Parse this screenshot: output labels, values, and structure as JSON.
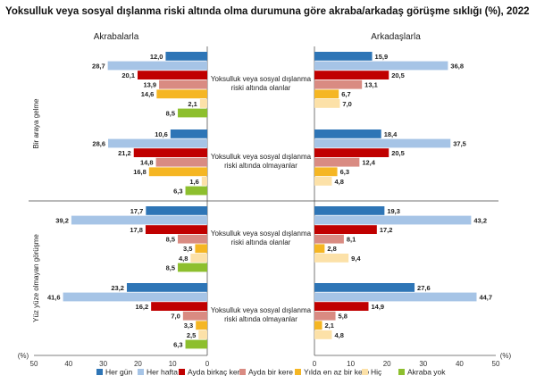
{
  "chart_data": {
    "type": "bar",
    "title": "Yoksulluk veya sosyal dışlanma riski altında olma durumuna göre akraba/arkadaş görüşme sıklığı (%), 2022",
    "left_header": "Akrabalarla",
    "right_header": "Arkadaşlarla",
    "axis_unit": "(%)",
    "xlim": [
      0,
      50
    ],
    "ticks": [
      50,
      40,
      30,
      20,
      10,
      0,
      10,
      20,
      30,
      40,
      50
    ],
    "row_groups": [
      "Bir araya gelme",
      "Yüz yüze olmayan görüşme"
    ],
    "series": [
      {
        "name": "Her gün",
        "color": "#2e75b6"
      },
      {
        "name": "Her hafta",
        "color": "#a6c4e6"
      },
      {
        "name": "Ayda birkaç kere",
        "color": "#c00000"
      },
      {
        "name": "Ayda bir kere",
        "color": "#d98b82"
      },
      {
        "name": "Yılda en az bir kere",
        "color": "#f5b623"
      },
      {
        "name": "Hiç",
        "color": "#fce1a8"
      },
      {
        "name": "Akraba yok",
        "color": "#8dbf2e"
      }
    ],
    "panels": [
      {
        "group": 0,
        "category": [
          "Yoksulluk veya sosyal dışlanma",
          "riski altında olanlar"
        ],
        "left": [
          12.0,
          28.7,
          20.1,
          13.9,
          14.6,
          2.1,
          8.5
        ],
        "left_labels": [
          "12,0",
          "28,7",
          "20,1",
          "13,9",
          "14,6",
          "2,1",
          "8,5"
        ],
        "right": [
          15.9,
          36.8,
          20.5,
          13.1,
          6.7,
          7.0
        ],
        "right_labels": [
          "15,9",
          "36,8",
          "20,5",
          "13,1",
          "6,7",
          "7,0"
        ]
      },
      {
        "group": 0,
        "category": [
          "Yoksulluk veya sosyal dışlanma",
          "riski altında olmayanlar"
        ],
        "left": [
          10.6,
          28.6,
          21.2,
          14.8,
          16.8,
          1.6,
          6.3
        ],
        "left_labels": [
          "10,6",
          "28,6",
          "21,2",
          "14,8",
          "16,8",
          "1,6",
          "6,3"
        ],
        "right": [
          18.4,
          37.5,
          20.5,
          12.4,
          6.3,
          4.8
        ],
        "right_labels": [
          "18,4",
          "37,5",
          "20,5",
          "12,4",
          "6,3",
          "4,8"
        ]
      },
      {
        "group": 1,
        "category": [
          "Yoksulluk veya sosyal dışlanma",
          "riski altında olanlar"
        ],
        "left": [
          17.7,
          39.2,
          17.8,
          8.5,
          3.5,
          4.8,
          8.5
        ],
        "left_labels": [
          "17,7",
          "39,2",
          "17,8",
          "8,5",
          "3,5",
          "4,8",
          "8,5"
        ],
        "right": [
          19.3,
          43.2,
          17.2,
          8.1,
          2.8,
          9.4
        ],
        "right_labels": [
          "19,3",
          "43,2",
          "17,2",
          "8,1",
          "2,8",
          "9,4"
        ]
      },
      {
        "group": 1,
        "category": [
          "Yoksulluk veya sosyal dışlanma",
          "riski altında olmayanlar"
        ],
        "left": [
          23.2,
          41.6,
          16.2,
          7.0,
          3.3,
          2.5,
          6.3
        ],
        "left_labels": [
          "23,2",
          "41,6",
          "16,2",
          "7,0",
          "3,3",
          "2,5",
          "6,3"
        ],
        "right": [
          27.6,
          44.7,
          14.9,
          5.8,
          2.1,
          4.8
        ],
        "right_labels": [
          "27,6",
          "44,7",
          "14,9",
          "5,8",
          "2,1",
          "4,8"
        ]
      }
    ]
  }
}
